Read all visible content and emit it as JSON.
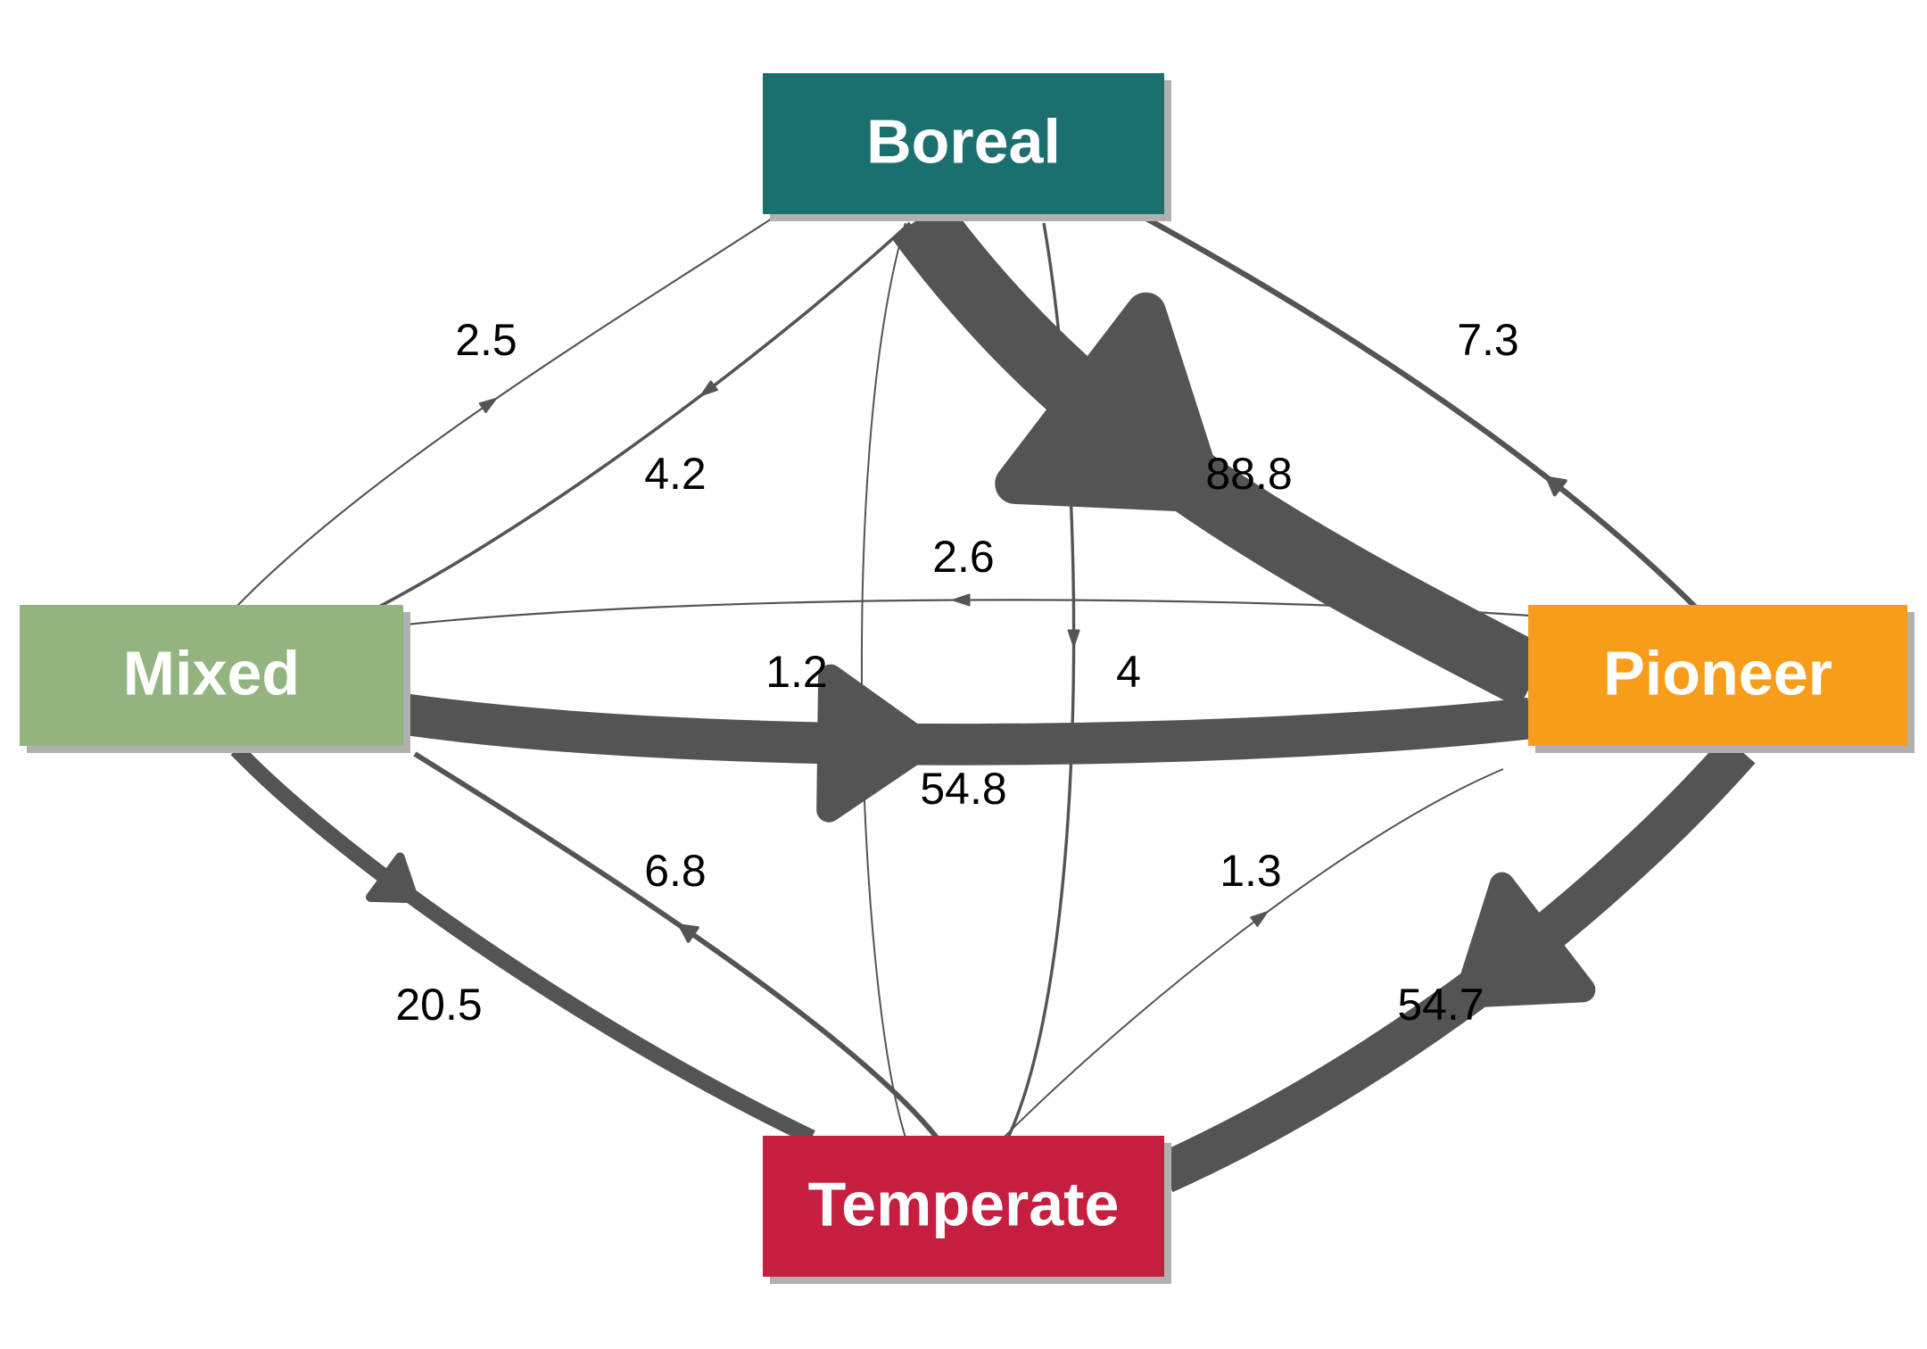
{
  "nodes": [
    {
      "id": "boreal",
      "label": "Boreal",
      "color": "#1b6f6e"
    },
    {
      "id": "mixed",
      "label": "Mixed",
      "color": "#93b47f"
    },
    {
      "id": "pioneer",
      "label": "Pioneer",
      "color": "#f89d1a"
    },
    {
      "id": "temperate",
      "label": "Temperate",
      "color": "#c51e3f"
    }
  ],
  "edges": [
    {
      "from": "mixed",
      "to": "boreal",
      "value": 2.5,
      "label": "2.5"
    },
    {
      "from": "boreal",
      "to": "mixed",
      "value": 4.2,
      "label": "4.2"
    },
    {
      "from": "pioneer",
      "to": "boreal",
      "value": 7.3,
      "label": "7.3"
    },
    {
      "from": "boreal",
      "to": "pioneer",
      "value": 88.8,
      "label": "88.8"
    },
    {
      "from": "pioneer",
      "to": "mixed",
      "value": 2.6,
      "label": "2.6"
    },
    {
      "from": "mixed",
      "to": "pioneer",
      "value": 54.8,
      "label": "54.8"
    },
    {
      "from": "temperate",
      "to": "boreal",
      "value": 1.2,
      "label": "1.2"
    },
    {
      "from": "boreal",
      "to": "temperate",
      "value": 4,
      "label": "4"
    },
    {
      "from": "temperate",
      "to": "mixed",
      "value": 6.8,
      "label": "6.8"
    },
    {
      "from": "mixed",
      "to": "temperate",
      "value": 20.5,
      "label": "20.5"
    },
    {
      "from": "temperate",
      "to": "pioneer",
      "value": 1.3,
      "label": "1.3"
    },
    {
      "from": "pioneer",
      "to": "temperate",
      "value": 54.7,
      "label": "54.7"
    }
  ]
}
